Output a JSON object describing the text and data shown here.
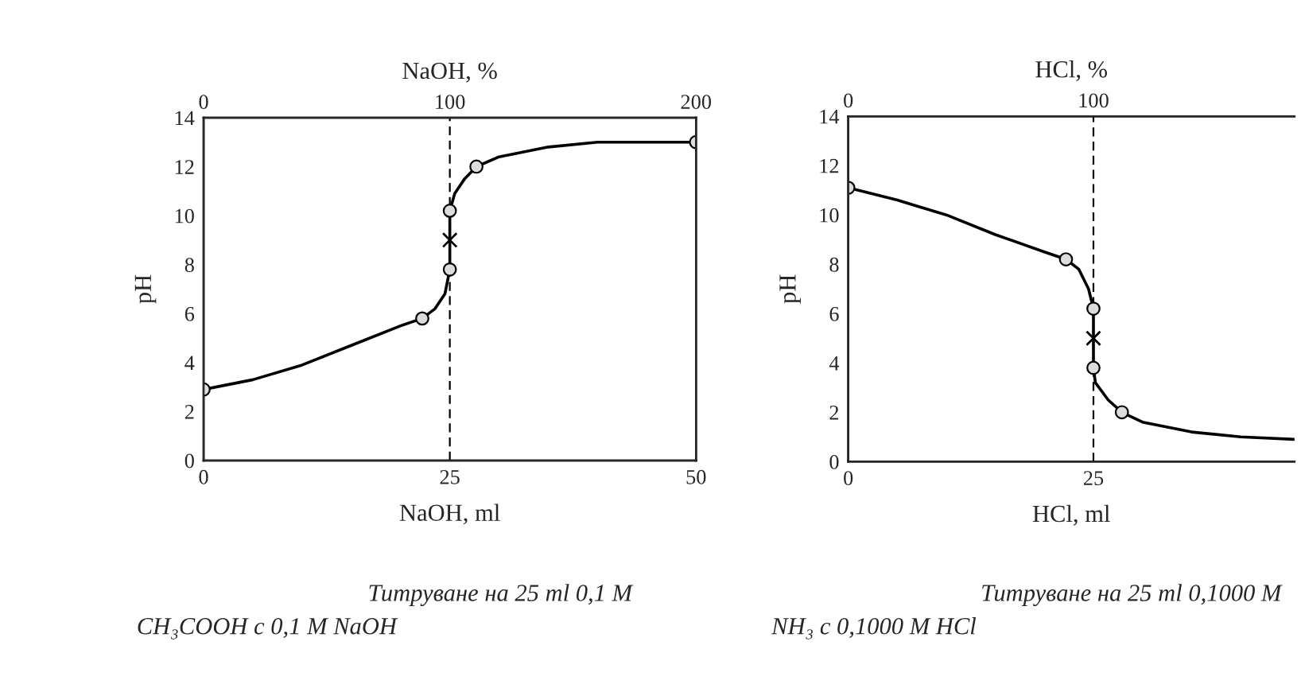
{
  "chart_data": [
    {
      "type": "line",
      "xlabel": "NaOH, ml",
      "x2label": "NaOH, %",
      "ylabel": "pH",
      "xlim": [
        0,
        50
      ],
      "xticks": [
        0,
        25,
        50
      ],
      "x2lim": [
        0,
        200
      ],
      "x2ticks": [
        0,
        100,
        200
      ],
      "ylim": [
        0,
        14
      ],
      "yticks": [
        0,
        2,
        4,
        6,
        8,
        10,
        12,
        14
      ],
      "series": [
        {
          "color": "#000000",
          "marker": "none",
          "x": [
            0,
            5,
            10,
            15,
            20,
            22.2,
            23.5,
            24.5,
            25,
            25,
            25.5,
            26.5,
            27.7,
            30,
            35,
            40,
            45,
            50
          ],
          "values": [
            2.9,
            3.3,
            3.9,
            4.7,
            5.5,
            5.8,
            6.2,
            6.8,
            7.8,
            10.2,
            10.9,
            11.5,
            12.0,
            12.4,
            12.8,
            13.0,
            13.0,
            13.0
          ]
        },
        {
          "type": "scatter",
          "color": "#dcdcdc",
          "marker": "circle",
          "x": [
            0,
            22.2,
            25,
            25,
            27.7,
            50
          ],
          "values": [
            2.9,
            5.8,
            7.8,
            10.2,
            12.0,
            13.0
          ]
        },
        {
          "type": "scatter",
          "color": "#000000",
          "marker": "cross",
          "x": [
            25
          ],
          "values": [
            9.0
          ]
        }
      ],
      "ref_lines": [
        {
          "axis": "x",
          "value": 25,
          "line_style": "dashed",
          "color": "#000000"
        }
      ],
      "annotations": [
        "Титруване на 25 ml 0,1 M",
        "CH₃COOH с 0,1 M NaOH"
      ]
    },
    {
      "type": "line",
      "xlabel": "HCl, ml",
      "x2label": "HCl, %",
      "ylabel": "pH",
      "xlim": [
        0,
        45.5
      ],
      "xticks": [
        0,
        25
      ],
      "x2lim": [
        0,
        182
      ],
      "x2ticks": [
        0,
        100
      ],
      "ylim": [
        0,
        14
      ],
      "yticks": [
        0,
        2,
        4,
        6,
        8,
        10,
        12,
        14
      ],
      "series": [
        {
          "color": "#000000",
          "marker": "none",
          "x": [
            0,
            5,
            10,
            15,
            20,
            22.2,
            23.5,
            24.5,
            25,
            25,
            25.2,
            26.5,
            27.9,
            30,
            35,
            40,
            45.5
          ],
          "values": [
            11.1,
            10.6,
            10.0,
            9.2,
            8.5,
            8.2,
            7.8,
            7.0,
            6.2,
            3.8,
            3.2,
            2.5,
            2.0,
            1.6,
            1.2,
            1.0,
            0.9
          ]
        },
        {
          "type": "scatter",
          "color": "#dcdcdc",
          "marker": "circle",
          "x": [
            0,
            22.2,
            25,
            25,
            27.9
          ],
          "values": [
            11.1,
            8.2,
            6.2,
            3.8,
            2.0
          ]
        },
        {
          "type": "scatter",
          "color": "#000000",
          "marker": "cross",
          "x": [
            25
          ],
          "values": [
            5.0
          ]
        }
      ],
      "ref_lines": [
        {
          "axis": "x",
          "value": 25,
          "line_style": "dashed",
          "color": "#000000"
        }
      ],
      "annotations": [
        "Титруване на 25 ml 0,1000 M",
        "NH₃ с 0,1000 M HCl"
      ]
    }
  ]
}
